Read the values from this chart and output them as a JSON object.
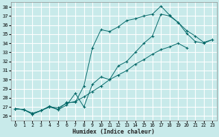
{
  "title": "",
  "xlabel": "Humidex (Indice chaleur)",
  "ylabel": "",
  "bg_color": "#c8eaea",
  "grid_color": "#ffffff",
  "line_color": "#006666",
  "xlim": [
    -0.5,
    23.5
  ],
  "ylim": [
    25.5,
    38.5
  ],
  "xticks": [
    0,
    1,
    2,
    3,
    4,
    5,
    6,
    7,
    8,
    9,
    10,
    11,
    12,
    13,
    14,
    15,
    16,
    17,
    18,
    19,
    20,
    21,
    22,
    23
  ],
  "yticks": [
    26,
    27,
    28,
    29,
    30,
    31,
    32,
    33,
    34,
    35,
    36,
    37,
    38
  ],
  "series": [
    {
      "x": [
        0,
        1,
        2,
        3,
        4,
        5,
        6,
        7,
        8,
        9,
        10,
        11,
        12,
        13,
        14,
        15,
        16,
        17,
        18,
        19,
        20,
        21,
        22,
        23
      ],
      "y": [
        26.8,
        26.7,
        26.2,
        26.6,
        27.1,
        26.7,
        27.5,
        27.5,
        29.3,
        33.5,
        35.5,
        35.3,
        35.8,
        36.5,
        36.7,
        37.0,
        37.2,
        38.1,
        37.1,
        36.3,
        35.1,
        34.2,
        34.0,
        34.4
      ]
    },
    {
      "x": [
        0,
        1,
        2,
        3,
        4,
        5,
        6,
        7,
        8,
        9,
        10,
        11,
        12,
        13,
        14,
        15,
        16,
        17,
        18,
        19,
        20,
        21,
        22,
        23
      ],
      "y": [
        26.8,
        26.7,
        26.3,
        26.6,
        27.0,
        26.7,
        27.2,
        28.5,
        27.0,
        29.5,
        30.3,
        30.0,
        31.5,
        32.0,
        33.0,
        34.0,
        34.8,
        37.2,
        37.0,
        36.3,
        35.4,
        34.8,
        34.1,
        34.4
      ]
    },
    {
      "x": [
        0,
        1,
        2,
        3,
        4,
        5,
        6,
        7,
        8,
        9,
        10,
        11,
        12,
        13,
        14,
        15,
        16,
        17,
        18,
        19,
        20
      ],
      "y": [
        26.8,
        26.7,
        26.2,
        26.6,
        27.0,
        26.9,
        27.4,
        27.6,
        28.1,
        28.7,
        29.3,
        30.0,
        30.5,
        31.0,
        31.7,
        32.2,
        32.8,
        33.3,
        33.6,
        34.0,
        33.5
      ]
    }
  ]
}
